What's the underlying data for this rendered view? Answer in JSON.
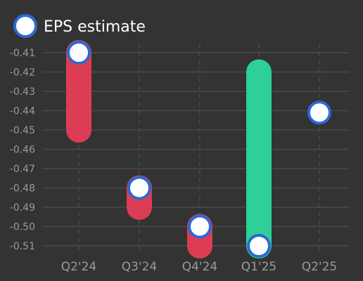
{
  "chart_data": {
    "type": "range-bar-with-estimate-points",
    "legend": {
      "label": "EPS estimate",
      "placement": "top-left"
    },
    "categories": [
      "Q2'24",
      "Q3'24",
      "Q4'24",
      "Q1'25",
      "Q2'25"
    ],
    "estimate": [
      -0.41,
      -0.48,
      -0.5,
      -0.51,
      -0.441
    ],
    "actual": [
      -0.45,
      -0.49,
      -0.51,
      -0.42,
      null
    ],
    "bar_status": [
      "miss",
      "miss",
      "miss",
      "beat",
      null
    ],
    "yticks": [
      -0.41,
      -0.42,
      -0.43,
      -0.44,
      -0.45,
      -0.46,
      -0.47,
      -0.48,
      -0.49,
      -0.5,
      -0.51
    ],
    "ytick_labels": [
      "-0.41",
      "-0.42",
      "-0.43",
      "-0.44",
      "-0.45",
      "-0.46",
      "-0.47",
      "-0.48",
      "-0.49",
      "-0.50",
      "-0.51"
    ],
    "ylim": [
      -0.513,
      -0.41
    ],
    "grid": true
  },
  "colors": {
    "background": "#333333",
    "grid": "#4a4a4a",
    "miss": "#dc3d55",
    "beat": "#2ecf98",
    "estimate_fill": "#ffffff",
    "estimate_stroke": "#2a6ad5",
    "tick_text": "#9a9a9a"
  }
}
